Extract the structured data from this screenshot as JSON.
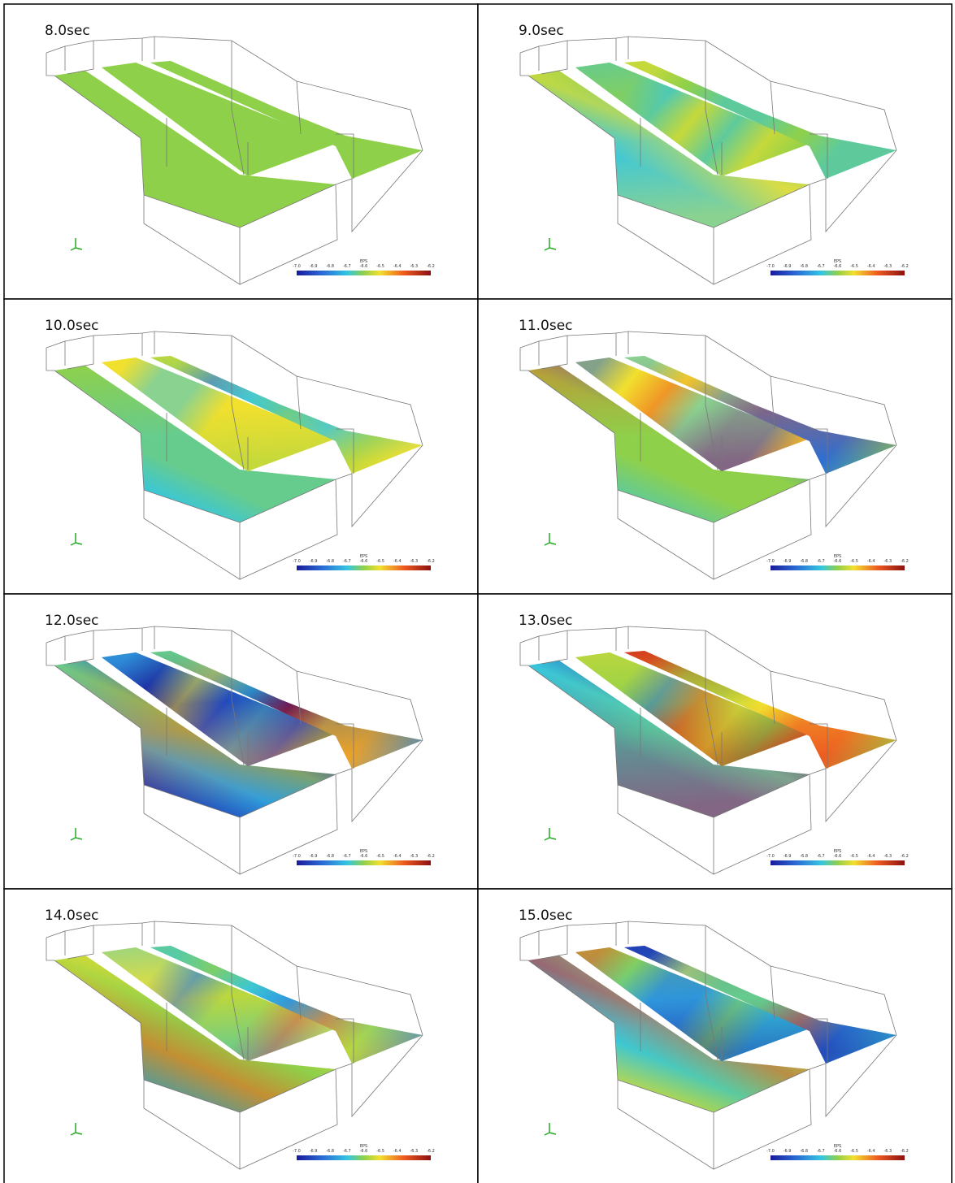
{
  "panels": [
    {
      "label": "8.0sec"
    },
    {
      "label": "9.0sec"
    },
    {
      "label": "10.0sec"
    },
    {
      "label": "11.0sec"
    },
    {
      "label": "12.0sec"
    },
    {
      "label": "13.0sec"
    },
    {
      "label": "14.0sec"
    },
    {
      "label": "15.0sec"
    }
  ],
  "colorbar": {
    "title": "EPS",
    "ticks": [
      "-7.0",
      "-6.9",
      "-6.8",
      "-6.7",
      "-6.6",
      "-6.5",
      "-6.4",
      "-6.3",
      "-6.2"
    ]
  }
}
